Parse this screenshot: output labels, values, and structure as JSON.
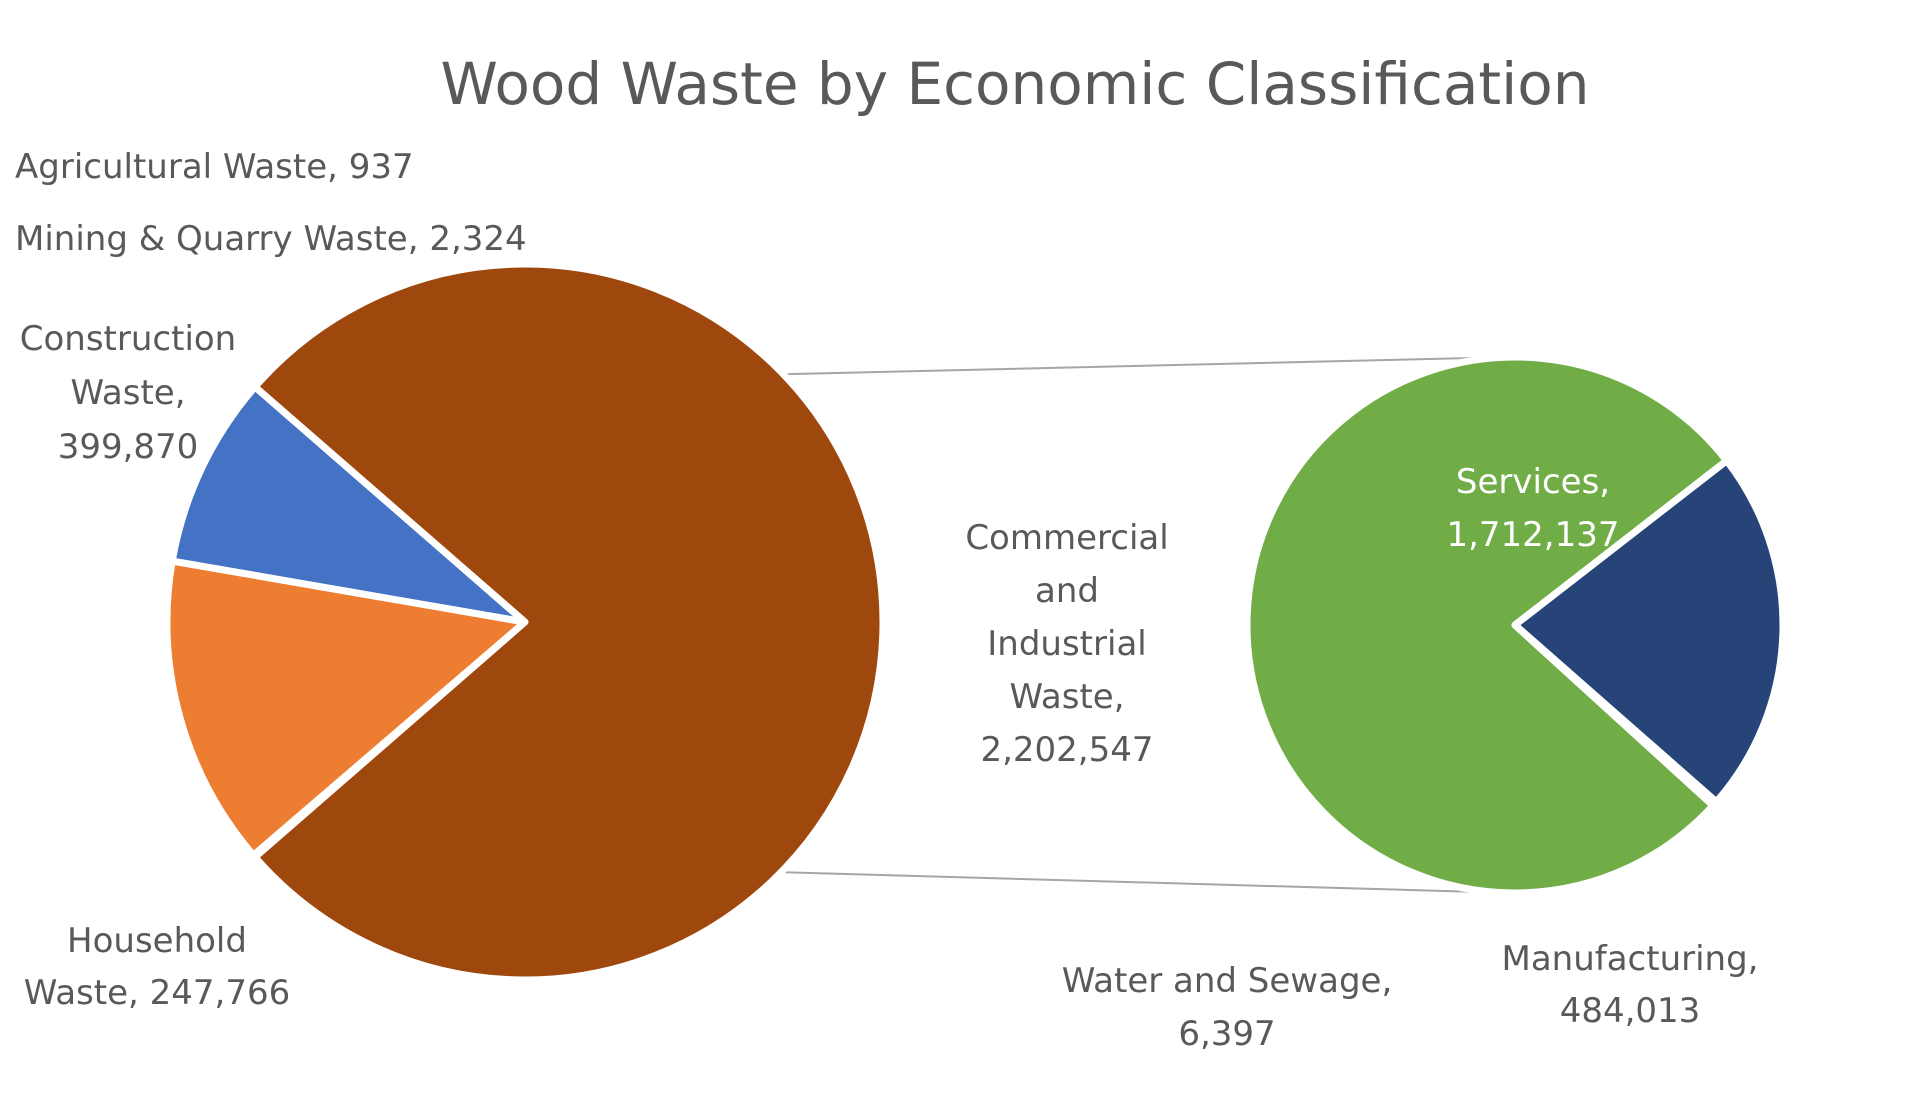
{
  "chart_data": {
    "type": "pie",
    "subtype": "bar-of-pie",
    "title": "Wood Waste by Economic Classification",
    "main_pie": {
      "slices": [
        {
          "name": "Agricultural Waste",
          "value": 937,
          "value_label": "937",
          "color": "#5b9bd5"
        },
        {
          "name": "Mining & Quarry Waste",
          "value": 2324,
          "value_label": "2,324",
          "color": "#a5a5a5"
        },
        {
          "name": "Construction Waste",
          "value": 399870,
          "value_label": "399,870",
          "color": "#ed7d31"
        },
        {
          "name": "Household Waste",
          "value": 247766,
          "value_label": "247,766",
          "color": "#4472c4"
        },
        {
          "name": "Commercial and Industrial Waste",
          "value": 2202547,
          "value_label": "2,202,547",
          "color": "#9e480e"
        }
      ]
    },
    "secondary_pie": {
      "parent": "Commercial and Industrial Waste",
      "slices": [
        {
          "name": "Services",
          "value": 1712137,
          "value_label": "1,712,137",
          "color": "#70ad47"
        },
        {
          "name": "Manufacturing",
          "value": 484013,
          "value_label": "484,013",
          "color": "#264478"
        },
        {
          "name": "Water and Sewage",
          "value": 6397,
          "value_label": "6,397",
          "color": "#636363"
        }
      ]
    },
    "labels": {
      "agricultural": [
        "Agricultural Waste, 937"
      ],
      "mining": [
        "Mining & Quarry Waste, 2,324"
      ],
      "construction": [
        "Construction",
        "Waste,",
        "399,870"
      ],
      "household": [
        "Household",
        "Waste, 247,766"
      ],
      "commercial": [
        "Commercial",
        "and",
        "Industrial",
        "Waste,",
        "2,202,547"
      ],
      "services": [
        "Services,",
        "1,712,137"
      ],
      "water": [
        "Water and Sewage,",
        "6,397"
      ],
      "manufacturing": [
        "Manufacturing,",
        "484,013"
      ]
    },
    "connector_color": "#a6a6a6",
    "legend": "none"
  }
}
